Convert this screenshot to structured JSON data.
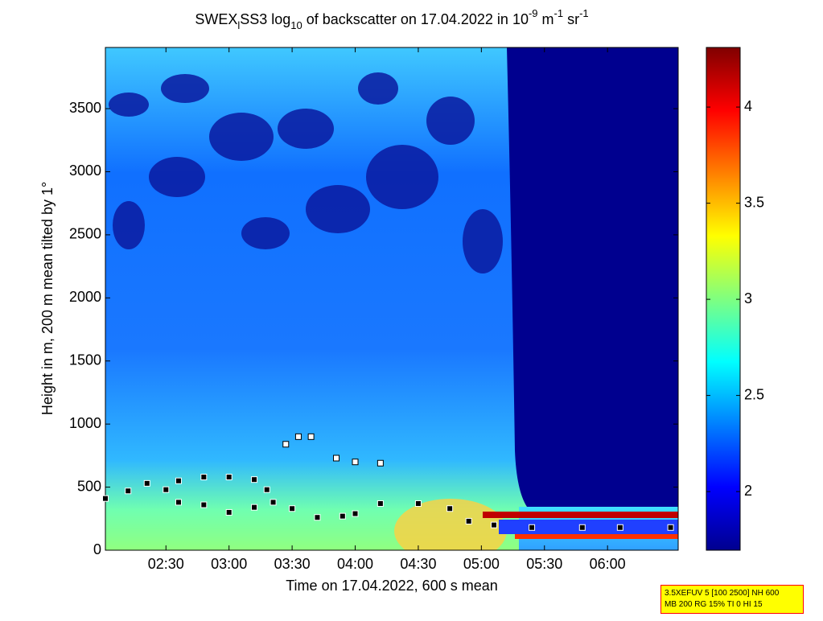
{
  "chart_data": {
    "type": "heatmap",
    "title": [
      {
        "text": "SWEX"
      },
      {
        "text": "l",
        "baseline": "sub"
      },
      {
        "text": "SS3 log"
      },
      {
        "text": "10",
        "baseline": "sub"
      },
      {
        "text": " of backscatter on 17.04.2022 in 10"
      },
      {
        "text": "-9",
        "baseline": "sup"
      },
      {
        "text": " m"
      },
      {
        "text": "-1",
        "baseline": "sup"
      },
      {
        "text": " sr"
      },
      {
        "text": "-1",
        "baseline": "sup"
      }
    ],
    "xlabel": "Time on 17.04.2022, 600 s mean",
    "ylabel": "Height in m, 200 m mean tilted by 1°",
    "xlim": [
      2.02,
      6.56
    ],
    "xticks": [
      {
        "value": 2.5,
        "label": "02:30"
      },
      {
        "value": 3.0,
        "label": "03:00"
      },
      {
        "value": 3.5,
        "label": "03:30"
      },
      {
        "value": 4.0,
        "label": "04:00"
      },
      {
        "value": 4.5,
        "label": "04:30"
      },
      {
        "value": 5.0,
        "label": "05:00"
      },
      {
        "value": 5.5,
        "label": "05:30"
      },
      {
        "value": 6.0,
        "label": "06:00"
      }
    ],
    "ylim": [
      0,
      3985
    ],
    "yticks": [
      0,
      500,
      1000,
      1500,
      2000,
      2500,
      3000,
      3500
    ],
    "zlim": [
      1.695,
      4.31
    ],
    "zticks": [
      2,
      2.5,
      3,
      3.5,
      4
    ],
    "colormap": "jet",
    "layers": [
      {
        "color": "#000000",
        "x": [
          2.02,
          2.2,
          2.35,
          2.5,
          2.6,
          2.8,
          3.0,
          3.2,
          3.35,
          3.5,
          3.7,
          3.9,
          4.0,
          4.2,
          4.5,
          4.75,
          4.9,
          5.1,
          5.4,
          5.8,
          6.1,
          6.5
        ],
        "y": [
          410,
          470,
          530,
          480,
          380,
          360,
          300,
          340,
          380,
          330,
          260,
          270,
          290,
          370,
          370,
          330,
          230,
          200,
          180,
          180,
          180,
          180
        ]
      },
      {
        "color": "#000000",
        "x": [
          2.6,
          2.8,
          3.0,
          3.2,
          3.3
        ],
        "y": [
          550,
          580,
          580,
          560,
          480
        ]
      },
      {
        "color": "#ffffff",
        "x": [
          3.45,
          3.55,
          3.65,
          3.85,
          4.0,
          4.2
        ],
        "y": [
          840,
          900,
          900,
          730,
          700,
          690
        ]
      }
    ],
    "note": [
      "3.5XEFUV 5 [100 2500] NH 600",
      "MB 200 RG 15% TI 0 HI 15"
    ]
  }
}
